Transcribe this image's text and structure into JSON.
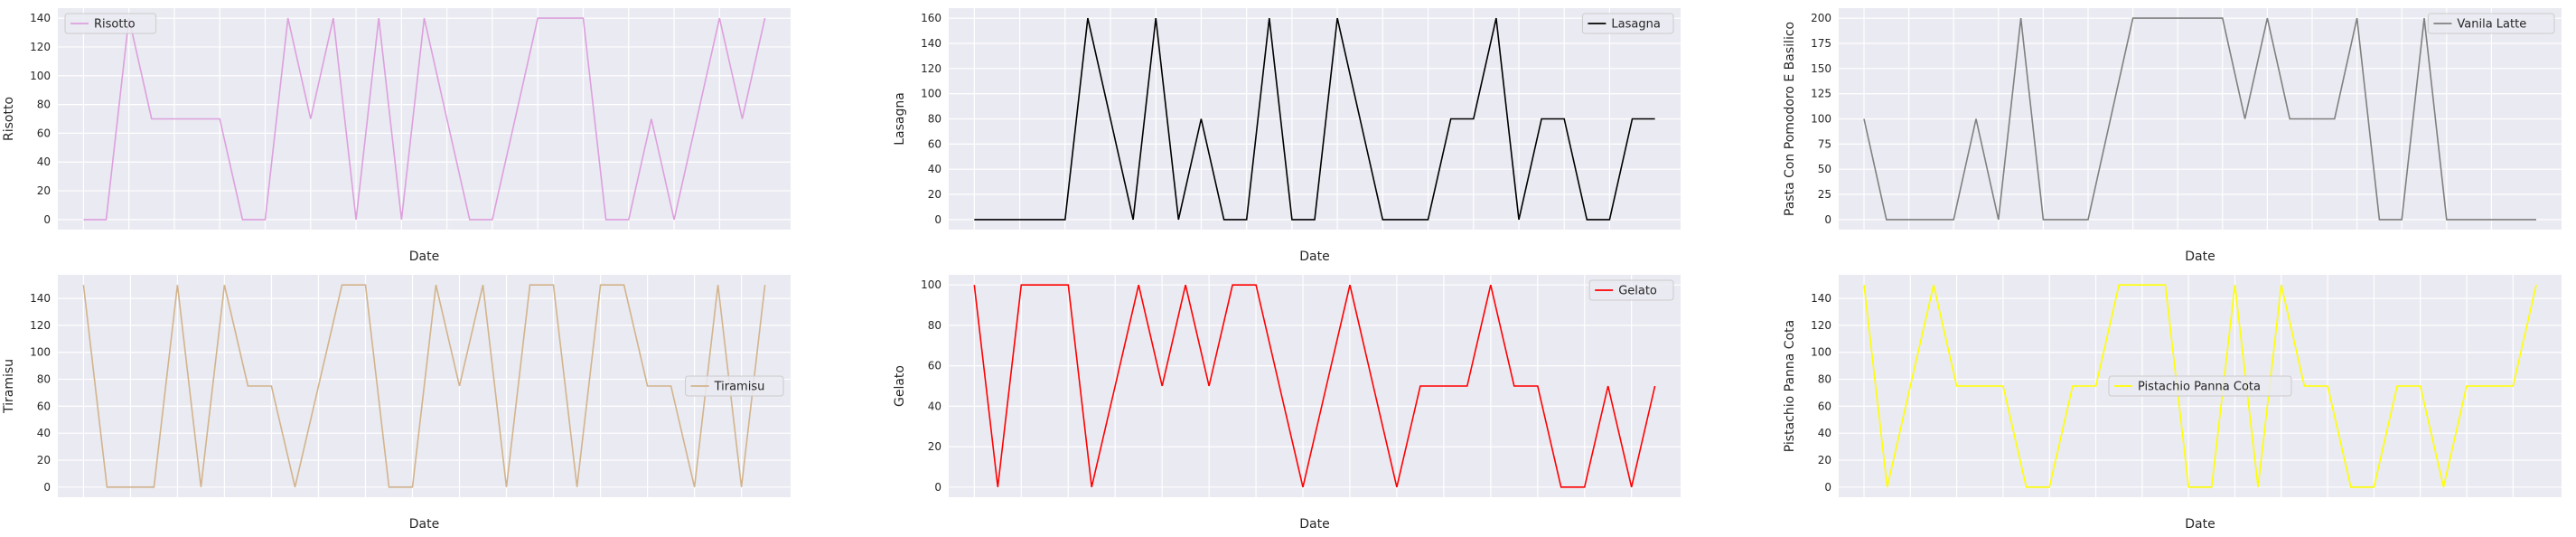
{
  "chart_data": [
    {
      "type": "line",
      "xlabel": "Date",
      "ylabel": "Risotto",
      "series": [
        {
          "name": "Risotto",
          "color": "#dda0dd",
          "values": [
            0,
            0,
            140,
            70,
            70,
            70,
            70,
            0,
            0,
            140,
            70,
            140,
            0,
            140,
            0,
            140,
            70,
            0,
            0,
            70,
            140,
            140,
            140,
            0,
            0,
            70,
            0,
            70,
            140,
            70,
            140
          ]
        }
      ],
      "yticks": [
        0,
        20,
        40,
        60,
        80,
        100,
        120,
        140
      ],
      "ylim": [
        -7,
        147
      ],
      "legend_position": "top-left"
    },
    {
      "type": "line",
      "xlabel": "Date",
      "ylabel": "Lasagna",
      "series": [
        {
          "name": "Lasagna",
          "color": "#000000",
          "values": [
            0,
            0,
            0,
            0,
            0,
            160,
            80,
            0,
            160,
            0,
            80,
            0,
            0,
            160,
            0,
            0,
            160,
            80,
            0,
            0,
            0,
            80,
            80,
            160,
            0,
            80,
            80,
            0,
            0,
            80,
            80
          ]
        }
      ],
      "yticks": [
        0,
        20,
        40,
        60,
        80,
        100,
        120,
        140,
        160
      ],
      "ylim": [
        -8,
        168
      ],
      "legend_position": "top-right"
    },
    {
      "type": "line",
      "xlabel": "Date",
      "ylabel": "Pasta Con Pomodoro E Basilico",
      "series": [
        {
          "name": "Vanila Latte",
          "color": "#808080",
          "values": [
            100,
            0,
            0,
            0,
            0,
            100,
            0,
            200,
            0,
            0,
            0,
            100,
            200,
            200,
            200,
            200,
            200,
            100,
            200,
            100,
            100,
            100,
            200,
            0,
            0,
            200,
            0,
            0,
            0,
            0,
            0
          ]
        }
      ],
      "yticks": [
        0,
        25,
        50,
        75,
        100,
        125,
        150,
        175,
        200
      ],
      "ylim": [
        -10,
        210
      ],
      "legend_position": "top-right"
    },
    {
      "type": "line",
      "xlabel": "Date",
      "ylabel": "Tiramisu",
      "series": [
        {
          "name": "Tiramisu",
          "color": "#d2b48c",
          "values": [
            150,
            0,
            0,
            0,
            150,
            0,
            150,
            75,
            75,
            0,
            75,
            150,
            150,
            0,
            0,
            150,
            75,
            150,
            0,
            150,
            150,
            0,
            150,
            150,
            75,
            75,
            0,
            150,
            0,
            150
          ]
        }
      ],
      "yticks": [
        0,
        20,
        40,
        60,
        80,
        100,
        120,
        140
      ],
      "ylim": [
        -7.5,
        157.5
      ],
      "legend_position": "center-right"
    },
    {
      "type": "line",
      "xlabel": "Date",
      "ylabel": "Gelato",
      "series": [
        {
          "name": "Gelato",
          "color": "#ff0000",
          "values": [
            100,
            0,
            100,
            100,
            100,
            0,
            50,
            100,
            50,
            100,
            50,
            100,
            100,
            50,
            0,
            50,
            100,
            50,
            0,
            50,
            50,
            50,
            100,
            50,
            50,
            0,
            0,
            50,
            0,
            50
          ]
        }
      ],
      "yticks": [
        0,
        20,
        40,
        60,
        80,
        100
      ],
      "ylim": [
        -5,
        105
      ],
      "legend_position": "top-right"
    },
    {
      "type": "line",
      "xlabel": "Date",
      "ylabel": "Pistachio Panna Cota",
      "series": [
        {
          "name": "Pistachio Panna Cota",
          "color": "#ffff00",
          "values": [
            150,
            0,
            75,
            150,
            75,
            75,
            75,
            0,
            0,
            75,
            75,
            150,
            150,
            150,
            0,
            0,
            150,
            0,
            150,
            75,
            75,
            0,
            0,
            75,
            75,
            0,
            75,
            75,
            75,
            150
          ]
        }
      ],
      "yticks": [
        0,
        20,
        40,
        60,
        80,
        100,
        120,
        140
      ],
      "ylim": [
        -7.5,
        157.5
      ],
      "legend_position": "center"
    }
  ]
}
